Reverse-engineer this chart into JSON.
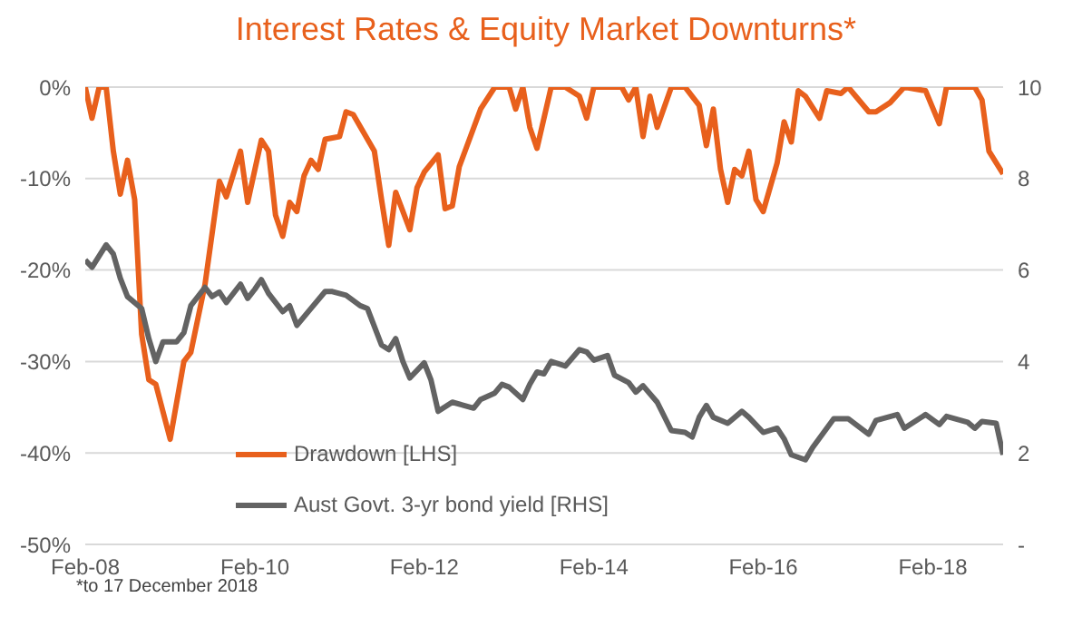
{
  "chart_data": {
    "type": "line",
    "title": "Interest Rates & Equity Market Downturns*",
    "xlim": [
      "2008-02",
      "2018-12"
    ],
    "xticks": [
      {
        "value": "2008-02",
        "label": "Feb-08"
      },
      {
        "value": "2010-02",
        "label": "Feb-10"
      },
      {
        "value": "2012-02",
        "label": "Feb-12"
      },
      {
        "value": "2014-02",
        "label": "Feb-14"
      },
      {
        "value": "2016-02",
        "label": "Feb-16"
      },
      {
        "value": "2018-02",
        "label": "Feb-18"
      }
    ],
    "ylim": [
      -50,
      0
    ],
    "yticks": [
      {
        "value": -50,
        "label": "-50%"
      },
      {
        "value": -40,
        "label": "-40%"
      },
      {
        "value": -30,
        "label": "-30%"
      },
      {
        "value": -20,
        "label": "-20%"
      },
      {
        "value": -10,
        "label": "-10%"
      },
      {
        "value": 0,
        "label": "0%"
      }
    ],
    "y2lim": [
      0,
      10
    ],
    "y2ticks": [
      {
        "value": 0,
        "label": "-"
      },
      2,
      4,
      6,
      8,
      10
    ],
    "grid": "y",
    "legend": "bottom",
    "annotations": [
      "*to 17 December 2018"
    ],
    "series": [
      {
        "name": "Drawdown [LHS]",
        "color": "#e8601c",
        "x": [
          "2008-02",
          "2008-03",
          "2008-04",
          "2008-05",
          "2008-06",
          "2008-07",
          "2008-08",
          "2008-09",
          "2008-10",
          "2008-11",
          "2008-12",
          "2009-02",
          "2009-04",
          "2009-05",
          "2009-07",
          "2009-09",
          "2009-10",
          "2009-12",
          "2010-01",
          "2010-03",
          "2010-04",
          "2010-05",
          "2010-06",
          "2010-07",
          "2010-08",
          "2010-09",
          "2010-10",
          "2010-11",
          "2010-12",
          "2011-02",
          "2011-03",
          "2011-04",
          "2011-07",
          "2011-08",
          "2011-09",
          "2011-10",
          "2011-12",
          "2012-01",
          "2012-02",
          "2012-04",
          "2012-05",
          "2012-06",
          "2012-07",
          "2012-10",
          "2012-12",
          "2013-02",
          "2013-03",
          "2013-04",
          "2013-05",
          "2013-06",
          "2013-08",
          "2013-10",
          "2013-12",
          "2014-01",
          "2014-02",
          "2014-06",
          "2014-07",
          "2014-08",
          "2014-09",
          "2014-10",
          "2014-11",
          "2015-01",
          "2015-03",
          "2015-05",
          "2015-06",
          "2015-07",
          "2015-08",
          "2015-09",
          "2015-10",
          "2015-11",
          "2015-12",
          "2016-01",
          "2016-02",
          "2016-04",
          "2016-05",
          "2016-06",
          "2016-07",
          "2016-08",
          "2016-10",
          "2016-11",
          "2017-01",
          "2017-02",
          "2017-05",
          "2017-06",
          "2017-08",
          "2017-10",
          "2018-01",
          "2018-03",
          "2018-04",
          "2018-08",
          "2018-09",
          "2018-10",
          "2018-12"
        ],
        "values": [
          0,
          -3.4,
          0,
          0,
          -7,
          -11.7,
          -8,
          -12.3,
          -27,
          -32,
          -32.5,
          -38.5,
          -30,
          -29,
          -21.6,
          -10.3,
          -12,
          -7,
          -12.6,
          -5.8,
          -7,
          -14,
          -16.3,
          -12.6,
          -13.6,
          -9.7,
          -8,
          -9,
          -5.7,
          -5.4,
          -2.7,
          -3,
          -7,
          -12.3,
          -17.3,
          -11.5,
          -15.6,
          -11,
          -9.3,
          -7.4,
          -13.3,
          -13,
          -8.7,
          -2.4,
          0,
          0,
          -2.4,
          0,
          -4.4,
          -6.7,
          0,
          0,
          -1,
          -3.4,
          0,
          0,
          -1.4,
          0,
          -5.4,
          -1,
          -4.4,
          0,
          0,
          -2,
          -6.4,
          -2.4,
          -9,
          -12.6,
          -9,
          -9.7,
          -7,
          -12.3,
          -13.6,
          -8.3,
          -3.8,
          -6,
          -0.4,
          -1,
          -3.4,
          -0.4,
          -0.7,
          0,
          -2.7,
          -2.7,
          -1.7,
          0,
          -0.4,
          -4,
          0,
          0,
          -1.4,
          -7,
          -9.5
        ]
      },
      {
        "name": "Aust Govt. 3-yr bond yield [RHS]",
        "color": "#636363",
        "axis": "y2",
        "x": [
          "2008-02",
          "2008-03",
          "2008-05",
          "2008-06",
          "2008-07",
          "2008-08",
          "2008-10",
          "2008-11",
          "2008-12",
          "2009-01",
          "2009-03",
          "2009-04",
          "2009-05",
          "2009-07",
          "2009-08",
          "2009-09",
          "2009-10",
          "2009-12",
          "2010-01",
          "2010-02",
          "2010-03",
          "2010-04",
          "2010-06",
          "2010-07",
          "2010-08",
          "2010-10",
          "2010-12",
          "2011-01",
          "2011-03",
          "2011-05",
          "2011-06",
          "2011-08",
          "2011-09",
          "2011-10",
          "2011-11",
          "2011-12",
          "2012-02",
          "2012-03",
          "2012-04",
          "2012-06",
          "2012-09",
          "2012-10",
          "2012-12",
          "2013-01",
          "2013-02",
          "2013-04",
          "2013-05",
          "2013-06",
          "2013-07",
          "2013-08",
          "2013-10",
          "2013-12",
          "2014-01",
          "2014-02",
          "2014-04",
          "2014-05",
          "2014-07",
          "2014-08",
          "2014-09",
          "2014-11",
          "2015-01",
          "2015-03",
          "2015-04",
          "2015-05",
          "2015-06",
          "2015-07",
          "2015-09",
          "2015-11",
          "2015-12",
          "2016-02",
          "2016-04",
          "2016-05",
          "2016-06",
          "2016-08",
          "2016-09",
          "2016-12",
          "2017-02",
          "2017-05",
          "2017-06",
          "2017-09",
          "2017-10",
          "2018-01",
          "2018-03",
          "2018-04",
          "2018-07",
          "2018-08",
          "2018-09",
          "2018-11",
          "2018-12"
        ],
        "values": [
          6.22,
          6.06,
          6.55,
          6.35,
          5.82,
          5.42,
          5.16,
          4.5,
          4.0,
          4.43,
          4.43,
          4.63,
          5.22,
          5.62,
          5.42,
          5.52,
          5.29,
          5.69,
          5.38,
          5.58,
          5.79,
          5.49,
          5.09,
          5.22,
          4.79,
          5.16,
          5.53,
          5.53,
          5.45,
          5.22,
          5.16,
          4.36,
          4.26,
          4.5,
          4.0,
          3.64,
          3.97,
          3.6,
          2.91,
          3.11,
          2.98,
          3.17,
          3.31,
          3.5,
          3.44,
          3.17,
          3.5,
          3.77,
          3.73,
          4.0,
          3.9,
          4.26,
          4.21,
          4.03,
          4.13,
          3.7,
          3.54,
          3.33,
          3.47,
          3.11,
          2.49,
          2.45,
          2.35,
          2.78,
          3.04,
          2.78,
          2.65,
          2.91,
          2.78,
          2.45,
          2.54,
          2.31,
          1.96,
          1.85,
          2.12,
          2.75,
          2.75,
          2.41,
          2.71,
          2.84,
          2.54,
          2.84,
          2.62,
          2.8,
          2.67,
          2.54,
          2.69,
          2.65,
          1.96
        ]
      }
    ]
  }
}
